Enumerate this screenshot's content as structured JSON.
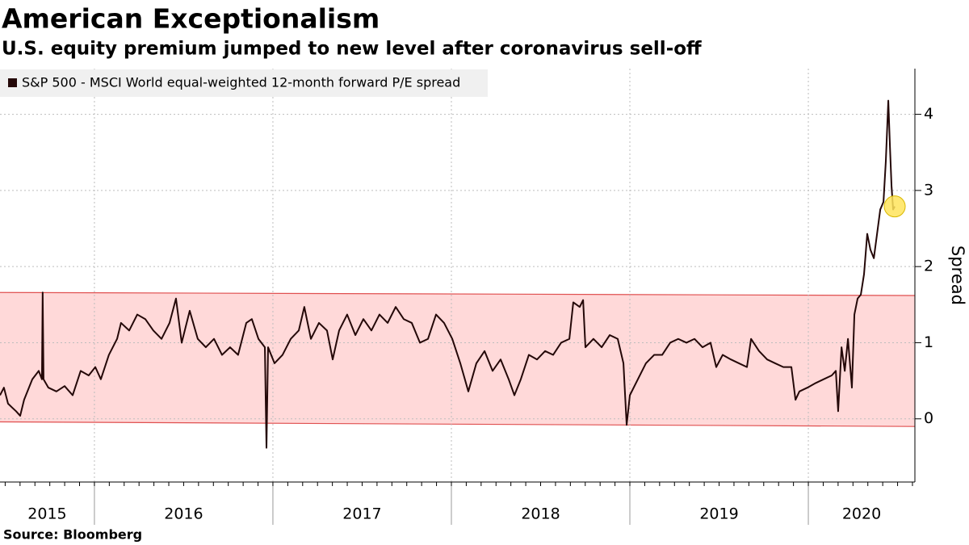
{
  "chart_data": {
    "type": "line",
    "title": "American Exceptionalism",
    "subtitle": "U.S. equity premium jumped to new level after coronavirus sell-off",
    "source": "Source: Bloomberg",
    "y_axis_label": "Spread",
    "xlim": [
      2015.471,
      2020.597
    ],
    "year_boundaries": [
      2016,
      2017,
      2018,
      2019,
      2020
    ],
    "year_labels": [
      "2015",
      "2016",
      "2017",
      "2018",
      "2019",
      "2020"
    ],
    "ylim": [
      -0.83,
      4.6
    ],
    "yticks": [
      0,
      1,
      2,
      3,
      4
    ],
    "grid": true,
    "band": {
      "upper": [
        1.66,
        1.62
      ],
      "lower": [
        -0.04,
        -0.1
      ],
      "fill": "#ffd9d9",
      "edge": "#e05050"
    },
    "highlight_last": {
      "color": "#ffe45c",
      "edge": "#d9b800"
    },
    "series": [
      {
        "name": "S&P 500 - MSCI World equal-weighted 12-month forward P/E spread",
        "color": "#240808",
        "x": [
          2015.471,
          2015.493,
          2015.516,
          2015.538,
          2015.561,
          2015.584,
          2015.606,
          2015.652,
          2015.688,
          2015.706,
          2015.71,
          2015.715,
          2015.742,
          2015.787,
          2015.833,
          2015.878,
          2015.923,
          2015.968,
          2016.005,
          2016.036,
          2016.081,
          2016.127,
          2016.149,
          2016.195,
          2016.24,
          2016.285,
          2016.33,
          2016.376,
          2016.421,
          2016.457,
          2016.489,
          2016.534,
          2016.579,
          2016.624,
          2016.67,
          2016.715,
          2016.76,
          2016.805,
          2016.851,
          2016.882,
          2016.919,
          2016.955,
          2016.964,
          2016.973,
          2017.009,
          2017.054,
          2017.1,
          2017.145,
          2017.176,
          2017.213,
          2017.258,
          2017.303,
          2017.335,
          2017.371,
          2017.416,
          2017.462,
          2017.507,
          2017.552,
          2017.597,
          2017.643,
          2017.688,
          2017.733,
          2017.778,
          2017.824,
          2017.869,
          2017.914,
          2017.959,
          2018.005,
          2018.05,
          2018.095,
          2018.14,
          2018.186,
          2018.231,
          2018.276,
          2018.321,
          2018.353,
          2018.389,
          2018.434,
          2018.48,
          2018.525,
          2018.57,
          2018.615,
          2018.661,
          2018.683,
          2018.719,
          2018.738,
          2018.751,
          2018.796,
          2018.842,
          2018.887,
          2018.932,
          2018.964,
          2018.982,
          2019.0,
          2019.045,
          2019.09,
          2019.136,
          2019.181,
          2019.226,
          2019.271,
          2019.317,
          2019.362,
          2019.407,
          2019.452,
          2019.484,
          2019.52,
          2019.566,
          2019.611,
          2019.656,
          2019.679,
          2019.724,
          2019.769,
          2019.814,
          2019.86,
          2019.905,
          2019.928,
          2019.95,
          2019.995,
          2020.041,
          2020.086,
          2020.131,
          2020.154,
          2020.167,
          2020.186,
          2020.204,
          2020.222,
          2020.244,
          2020.258,
          2020.276,
          2020.294,
          2020.312,
          2020.33,
          2020.348,
          2020.367,
          2020.385,
          2020.403,
          2020.421,
          2020.434,
          2020.448,
          2020.457,
          2020.466,
          2020.475,
          2020.484
        ],
        "values": [
          0.31,
          0.41,
          0.2,
          0.15,
          0.1,
          0.04,
          0.25,
          0.52,
          0.63,
          0.52,
          1.66,
          0.52,
          0.41,
          0.36,
          0.43,
          0.31,
          0.63,
          0.57,
          0.68,
          0.52,
          0.84,
          1.05,
          1.26,
          1.16,
          1.37,
          1.31,
          1.16,
          1.05,
          1.26,
          1.58,
          1.0,
          1.42,
          1.05,
          0.94,
          1.05,
          0.84,
          0.94,
          0.84,
          1.26,
          1.31,
          1.05,
          0.94,
          -0.38,
          0.94,
          0.73,
          0.84,
          1.05,
          1.16,
          1.47,
          1.05,
          1.26,
          1.16,
          0.78,
          1.16,
          1.37,
          1.1,
          1.31,
          1.16,
          1.37,
          1.26,
          1.47,
          1.31,
          1.26,
          1.0,
          1.05,
          1.37,
          1.26,
          1.05,
          0.73,
          0.36,
          0.73,
          0.89,
          0.63,
          0.78,
          0.52,
          0.31,
          0.52,
          0.84,
          0.78,
          0.89,
          0.84,
          1.0,
          1.05,
          1.53,
          1.47,
          1.56,
          0.94,
          1.05,
          0.94,
          1.1,
          1.05,
          0.73,
          -0.08,
          0.31,
          0.52,
          0.73,
          0.84,
          0.84,
          1.0,
          1.05,
          1.0,
          1.05,
          0.94,
          1.0,
          0.68,
          0.84,
          0.78,
          0.73,
          0.68,
          1.05,
          0.89,
          0.78,
          0.73,
          0.68,
          0.68,
          0.25,
          0.36,
          0.41,
          0.47,
          0.52,
          0.57,
          0.63,
          0.1,
          0.94,
          0.63,
          1.05,
          0.41,
          1.37,
          1.58,
          1.63,
          1.9,
          2.43,
          2.22,
          2.11,
          2.43,
          2.75,
          2.85,
          3.38,
          4.18,
          3.59,
          3.06,
          2.75,
          2.79
        ]
      }
    ]
  }
}
